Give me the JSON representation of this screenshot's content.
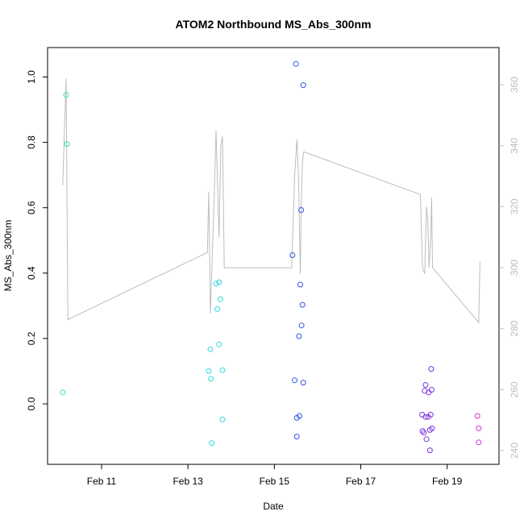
{
  "chart_data": {
    "type": "scatter",
    "title": "ATOM2 Northbound MS_Abs_300nm",
    "xlabel": "Date",
    "ylabel": "MS_Abs_300nm",
    "x_ticks": [
      "Feb 11",
      "Feb 13",
      "Feb 15",
      "Feb 17",
      "Feb 19"
    ],
    "x_tick_days": [
      11,
      13,
      15,
      17,
      19
    ],
    "xlim_days": [
      9.75,
      20.2
    ],
    "ylim": [
      -0.185,
      1.09
    ],
    "y_ticks": [
      0.0,
      0.2,
      0.4,
      0.6,
      0.8,
      1.0
    ],
    "y2_ticks": [
      240,
      260,
      280,
      300,
      320,
      340,
      360
    ],
    "y2lim": [
      235.5,
      372.2
    ],
    "colors": {
      "axis": "#000000",
      "secondary_axis": "#bdbdbd",
      "line": "#bdbdbd"
    },
    "points": [
      {
        "day": 10.1,
        "y": 0.035,
        "color": "#33e6b8"
      },
      {
        "day": 10.18,
        "y": 0.945,
        "color": "#33e6b8"
      },
      {
        "day": 10.2,
        "y": 0.795,
        "color": "#33e6b8"
      },
      {
        "day": 13.48,
        "y": 0.1,
        "color": "#33d6e0"
      },
      {
        "day": 13.52,
        "y": 0.167,
        "color": "#33d6e0"
      },
      {
        "day": 13.53,
        "y": 0.077,
        "color": "#33d6e0"
      },
      {
        "day": 13.55,
        "y": -0.12,
        "color": "#33d6e0"
      },
      {
        "day": 13.65,
        "y": 0.368,
        "color": "#33d6e0"
      },
      {
        "day": 13.68,
        "y": 0.29,
        "color": "#33d6e0"
      },
      {
        "day": 13.72,
        "y": 0.372,
        "color": "#33d6e0"
      },
      {
        "day": 13.72,
        "y": 0.182,
        "color": "#33d6e0"
      },
      {
        "day": 13.75,
        "y": 0.32,
        "color": "#33d6e0"
      },
      {
        "day": 13.8,
        "y": 0.103,
        "color": "#33d6e0"
      },
      {
        "day": 13.8,
        "y": -0.048,
        "color": "#33d6e0"
      },
      {
        "day": 15.42,
        "y": 0.455,
        "color": "#3355e6"
      },
      {
        "day": 15.47,
        "y": 0.072,
        "color": "#3355e6"
      },
      {
        "day": 15.5,
        "y": 1.04,
        "color": "#3355e6"
      },
      {
        "day": 15.52,
        "y": -0.043,
        "color": "#3355e6"
      },
      {
        "day": 15.52,
        "y": -0.1,
        "color": "#3355e6"
      },
      {
        "day": 15.57,
        "y": 0.207,
        "color": "#3355e6"
      },
      {
        "day": 15.58,
        "y": -0.037,
        "color": "#3355e6"
      },
      {
        "day": 15.6,
        "y": 0.365,
        "color": "#3355e6"
      },
      {
        "day": 15.62,
        "y": 0.593,
        "color": "#3355e6"
      },
      {
        "day": 15.63,
        "y": 0.24,
        "color": "#3355e6"
      },
      {
        "day": 15.65,
        "y": 0.303,
        "color": "#3355e6"
      },
      {
        "day": 15.67,
        "y": 0.975,
        "color": "#3355e6"
      },
      {
        "day": 15.67,
        "y": 0.065,
        "color": "#3355e6"
      },
      {
        "day": 18.42,
        "y": -0.033,
        "color": "#7a33e0"
      },
      {
        "day": 18.43,
        "y": -0.083,
        "color": "#7a33e0"
      },
      {
        "day": 18.46,
        "y": -0.088,
        "color": "#7a33e0"
      },
      {
        "day": 18.48,
        "y": 0.04,
        "color": "#7a33e0"
      },
      {
        "day": 18.5,
        "y": 0.058,
        "color": "#7a33e0"
      },
      {
        "day": 18.5,
        "y": -0.04,
        "color": "#7a33e0"
      },
      {
        "day": 18.52,
        "y": -0.108,
        "color": "#7a33e0"
      },
      {
        "day": 18.56,
        "y": -0.04,
        "color": "#7a33e0"
      },
      {
        "day": 18.57,
        "y": 0.035,
        "color": "#7a33e0"
      },
      {
        "day": 18.6,
        "y": -0.08,
        "color": "#7a33e0"
      },
      {
        "day": 18.6,
        "y": -0.142,
        "color": "#7a33e0"
      },
      {
        "day": 18.62,
        "y": -0.033,
        "color": "#7a33e0"
      },
      {
        "day": 18.63,
        "y": 0.107,
        "color": "#7a33e0"
      },
      {
        "day": 18.64,
        "y": 0.043,
        "color": "#7a33e0"
      },
      {
        "day": 18.65,
        "y": -0.075,
        "color": "#7a33e0"
      },
      {
        "day": 19.7,
        "y": -0.037,
        "color": "#d633e0"
      },
      {
        "day": 19.73,
        "y": -0.075,
        "color": "#d633e0"
      },
      {
        "day": 19.73,
        "y": -0.118,
        "color": "#d633e0"
      }
    ],
    "line_series": [
      {
        "day": 10.1,
        "y2": 327
      },
      {
        "day": 10.18,
        "y2": 362
      },
      {
        "day": 10.22,
        "y2": 283
      },
      {
        "day": 13.45,
        "y2": 305
      },
      {
        "day": 13.48,
        "y2": 325
      },
      {
        "day": 13.52,
        "y2": 285
      },
      {
        "day": 13.6,
        "y2": 320
      },
      {
        "day": 13.65,
        "y2": 345
      },
      {
        "day": 13.72,
        "y2": 310
      },
      {
        "day": 13.76,
        "y2": 340
      },
      {
        "day": 13.8,
        "y2": 343
      },
      {
        "day": 13.84,
        "y2": 300
      },
      {
        "day": 15.4,
        "y2": 300
      },
      {
        "day": 15.47,
        "y2": 330
      },
      {
        "day": 15.52,
        "y2": 342
      },
      {
        "day": 15.56,
        "y2": 330
      },
      {
        "day": 15.6,
        "y2": 298
      },
      {
        "day": 15.62,
        "y2": 320
      },
      {
        "day": 15.65,
        "y2": 335
      },
      {
        "day": 15.68,
        "y2": 338
      },
      {
        "day": 18.38,
        "y2": 324
      },
      {
        "day": 18.43,
        "y2": 300
      },
      {
        "day": 18.48,
        "y2": 298
      },
      {
        "day": 18.52,
        "y2": 320
      },
      {
        "day": 18.55,
        "y2": 316
      },
      {
        "day": 18.58,
        "y2": 300
      },
      {
        "day": 18.62,
        "y2": 310
      },
      {
        "day": 18.64,
        "y2": 323
      },
      {
        "day": 18.66,
        "y2": 300
      },
      {
        "day": 19.73,
        "y2": 282
      },
      {
        "day": 19.76,
        "y2": 302
      }
    ]
  }
}
